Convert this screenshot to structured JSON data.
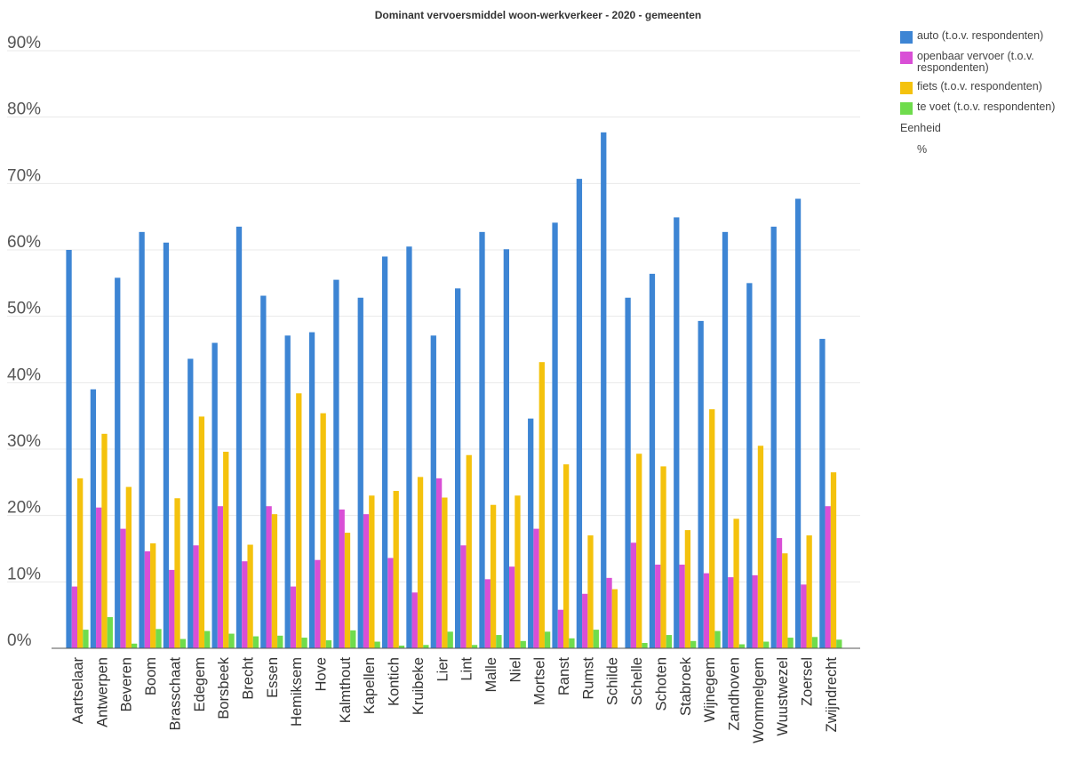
{
  "chart_data": {
    "type": "bar",
    "title": "Dominant vervoersmiddel woon-werkverkeer - 2020 - gemeenten",
    "xlabel": "",
    "ylabel": "",
    "ylim": [
      0,
      90
    ],
    "y_ticks": [
      "0%",
      "10%",
      "20%",
      "30%",
      "40%",
      "50%",
      "60%",
      "70%",
      "80%",
      "90%"
    ],
    "grid": true,
    "legend_position": "right",
    "unit_title": "Eenheid",
    "unit_value": "%",
    "categories": [
      "Aartselaar",
      "Antwerpen",
      "Beveren",
      "Boom",
      "Brasschaat",
      "Edegem",
      "Borsbeek",
      "Brecht",
      "Essen",
      "Hemiksem",
      "Hove",
      "Kalmthout",
      "Kapellen",
      "Kontich",
      "Kruibeke",
      "Lier",
      "Lint",
      "Malle",
      "Niel",
      "Mortsel",
      "Ranst",
      "Rumst",
      "Schilde",
      "Schelle",
      "Schoten",
      "Stabroek",
      "Wijnegem",
      "Zandhoven",
      "Wommelgem",
      "Wuustwezel",
      "Zoersel",
      "Zwijndrecht"
    ],
    "series": [
      {
        "name": "auto (t.o.v. respondenten)",
        "color": "#3d85d4",
        "values": [
          60.0,
          39.0,
          55.8,
          62.7,
          61.1,
          43.6,
          46.0,
          63.5,
          53.1,
          47.1,
          47.6,
          55.5,
          52.8,
          59.0,
          60.5,
          47.1,
          54.2,
          62.7,
          60.1,
          34.6,
          64.1,
          70.7,
          77.7,
          52.8,
          56.4,
          64.9,
          49.3,
          62.7,
          55.0,
          63.5,
          67.7,
          46.6
        ]
      },
      {
        "name": "openbaar vervoer (t.o.v. respondenten)",
        "color": "#d94fd6",
        "values": [
          9.3,
          21.2,
          18.0,
          14.6,
          11.8,
          15.5,
          21.4,
          13.1,
          21.4,
          9.3,
          13.3,
          20.9,
          20.2,
          13.6,
          8.4,
          25.6,
          15.5,
          10.4,
          12.3,
          18.0,
          5.8,
          8.2,
          10.6,
          15.9,
          12.6,
          12.6,
          11.3,
          10.7,
          11.0,
          16.6,
          9.6,
          21.4
        ]
      },
      {
        "name": "fiets (t.o.v. respondenten)",
        "color": "#f4c20d",
        "values": [
          25.6,
          32.3,
          24.3,
          15.8,
          22.6,
          34.9,
          29.6,
          15.6,
          20.2,
          38.4,
          35.4,
          17.4,
          23.0,
          23.7,
          25.8,
          22.7,
          29.1,
          21.6,
          23.0,
          43.1,
          27.7,
          17.0,
          8.9,
          29.3,
          27.4,
          17.8,
          36.0,
          19.5,
          30.5,
          14.3,
          17.0,
          26.5
        ]
      },
      {
        "name": "te voet (t.o.v. respondenten)",
        "color": "#6fdc4c",
        "values": [
          2.8,
          4.7,
          0.7,
          2.9,
          1.4,
          2.6,
          2.2,
          1.8,
          1.9,
          1.6,
          1.2,
          2.7,
          1.0,
          0.4,
          0.5,
          2.5,
          0.5,
          2.0,
          1.1,
          2.5,
          1.5,
          2.8,
          0.0,
          0.8,
          2.0,
          1.1,
          2.6,
          0.6,
          1.0,
          1.6,
          1.7,
          1.3
        ]
      }
    ]
  }
}
